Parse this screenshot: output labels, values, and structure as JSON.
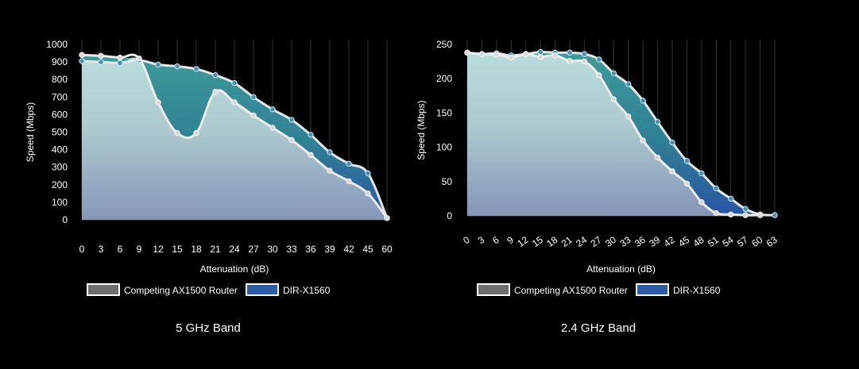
{
  "colors": {
    "background": "#000000",
    "competing": "#6e6e6e",
    "dirx1560": "#2e5ba6",
    "teal": "#3f9a9a",
    "fill_light": "#b9dcdc",
    "fill_dark": "#8596b8",
    "grid": "#3a3a3a"
  },
  "chart_data": [
    {
      "type": "area",
      "title": "5 GHz Band",
      "xlabel": "Attenuation (dB)",
      "ylabel": "Speed (Mbps)",
      "ylim": [
        0,
        1000
      ],
      "yticks": [
        0,
        100,
        200,
        300,
        400,
        500,
        600,
        700,
        800,
        900,
        1000
      ],
      "categories": [
        "0",
        "3",
        "6",
        "9",
        "12",
        "15",
        "18",
        "21",
        "24",
        "27",
        "30",
        "33",
        "36",
        "39",
        "42",
        "45",
        "60"
      ],
      "legend": [
        "Competing AX1500 Router",
        "DIR-X1560"
      ],
      "legend_position": "bottom",
      "series": [
        {
          "name": "Competing AX1500 Router",
          "values": [
            940,
            935,
            925,
            920,
            670,
            495,
            495,
            730,
            670,
            595,
            525,
            455,
            370,
            280,
            220,
            150,
            10
          ]
        },
        {
          "name": "DIR-X1560",
          "values": [
            905,
            900,
            895,
            910,
            885,
            875,
            860,
            825,
            780,
            700,
            630,
            570,
            485,
            385,
            320,
            265,
            10
          ]
        }
      ]
    },
    {
      "type": "area",
      "title": "2.4 GHz Band",
      "xlabel": "Attenuation (dB)",
      "ylabel": "Speed (Mbps)",
      "ylim": [
        0,
        250
      ],
      "yticks": [
        0,
        50,
        100,
        150,
        200,
        250
      ],
      "categories": [
        "0",
        "3",
        "6",
        "9",
        "12",
        "15",
        "18",
        "21",
        "24",
        "27",
        "30",
        "33",
        "36",
        "39",
        "42",
        "45",
        "48",
        "51",
        "54",
        "57",
        "60",
        "63"
      ],
      "legend": [
        "Competing AX1500 Router",
        "DIR-X1560"
      ],
      "legend_position": "bottom",
      "series": [
        {
          "name": "Competing AX1500 Router",
          "values": [
            238,
            236,
            235,
            231,
            236,
            232,
            234,
            226,
            225,
            205,
            170,
            145,
            110,
            85,
            65,
            47,
            20,
            4,
            2,
            1,
            1,
            null
          ]
        },
        {
          "name": "DIR-X1560",
          "values": [
            238,
            236,
            237,
            234,
            236,
            239,
            238,
            238,
            236,
            228,
            208,
            192,
            168,
            137,
            107,
            80,
            62,
            40,
            25,
            10,
            2,
            1
          ]
        }
      ]
    }
  ]
}
